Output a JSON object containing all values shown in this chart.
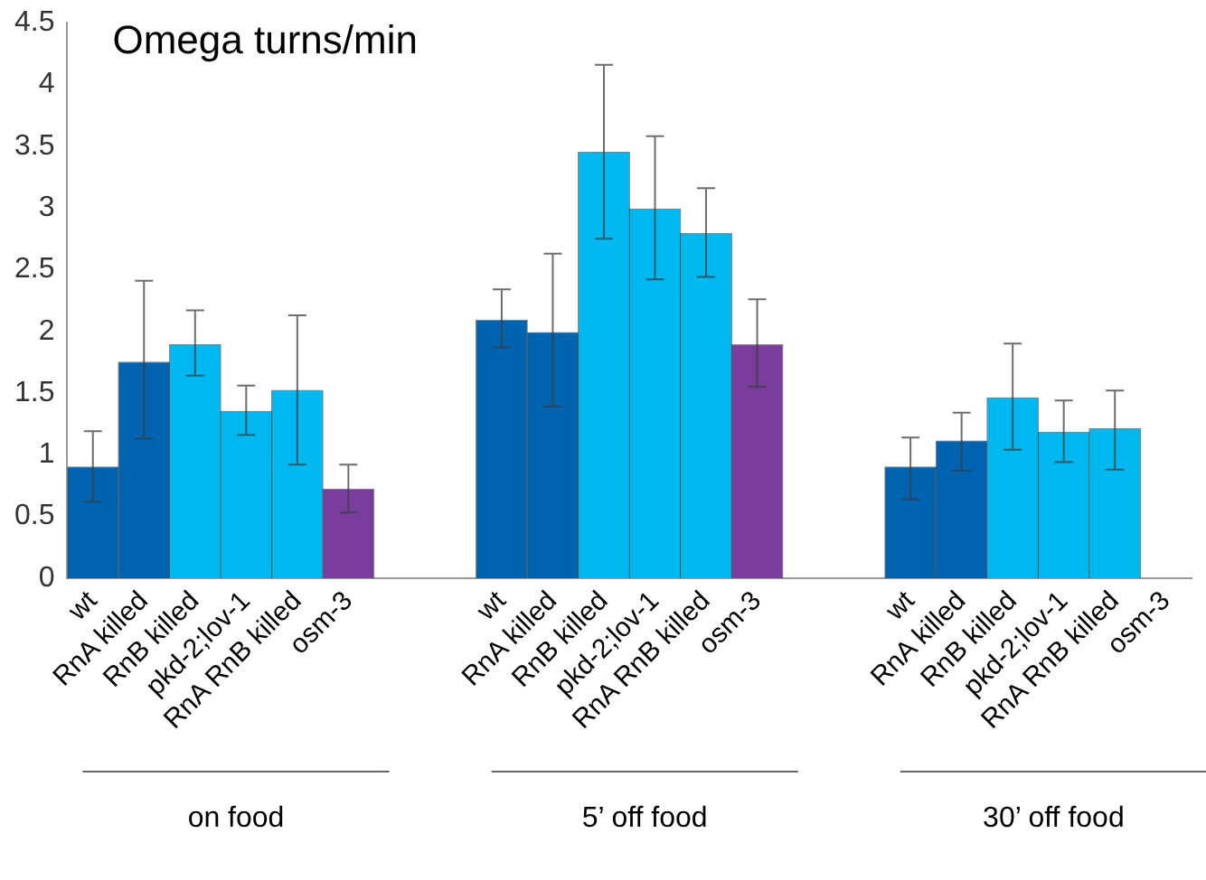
{
  "chart_data": {
    "type": "bar",
    "title": "Omega turns/min",
    "categories": [
      "wt",
      "RnA killed",
      "RnB killed",
      "pkd-2;lov-1",
      "RnA RnB killed",
      "osm-3",
      null,
      null,
      "wt",
      "RnA killed",
      "RnB killed",
      "pkd-2;lov-1",
      "RnA RnB killed",
      "osm-3",
      null,
      null,
      "wt",
      "RnA killed",
      "RnB killed",
      "pkd-2;lov-1",
      "RnA RnB killed",
      "osm-3"
    ],
    "values": [
      0.9,
      1.75,
      1.89,
      1.35,
      1.52,
      0.72,
      null,
      null,
      2.09,
      1.99,
      3.45,
      2.99,
      2.79,
      1.89,
      null,
      null,
      0.9,
      1.11,
      1.46,
      1.18,
      1.21,
      null
    ],
    "colors": [
      "#0063b0",
      "#0063b0",
      "#00b8f0",
      "#00b8f0",
      "#00b8f0",
      "#7a3d9e",
      "#ffffff",
      "#ffffff",
      "#0063b0",
      "#0063b0",
      "#00b8f0",
      "#00b8f0",
      "#00b8f0",
      "#7a3d9e",
      "#ffffff",
      "#ffffff",
      "#0063b0",
      "#0063b0",
      "#00b8f0",
      "#00b8f0",
      "#00b8f0",
      "#7a3d9e"
    ],
    "errors": [
      [
        0.62,
        1.19
      ],
      [
        1.13,
        2.41
      ],
      [
        1.64,
        2.17
      ],
      [
        1.16,
        1.56
      ],
      [
        0.92,
        2.13
      ],
      [
        0.53,
        0.92
      ],
      null,
      null,
      [
        1.87,
        2.34
      ],
      [
        1.39,
        2.63
      ],
      [
        2.75,
        4.16
      ],
      [
        2.42,
        3.58
      ],
      [
        2.44,
        3.16
      ],
      [
        1.55,
        2.26
      ],
      null,
      null,
      [
        0.64,
        1.14
      ],
      [
        0.87,
        1.34
      ],
      [
        1.04,
        1.9
      ],
      [
        0.94,
        1.44
      ],
      [
        0.88,
        1.52
      ],
      null
    ],
    "annotations": [
      "on food",
      "5’ off food",
      "30’ off food"
    ],
    "ylim": [
      0,
      4.5
    ],
    "yticks": [
      0,
      0.5,
      1,
      1.5,
      2,
      2.5,
      3,
      3.5,
      4,
      4.5
    ],
    "grid": false,
    "legend": false
  }
}
